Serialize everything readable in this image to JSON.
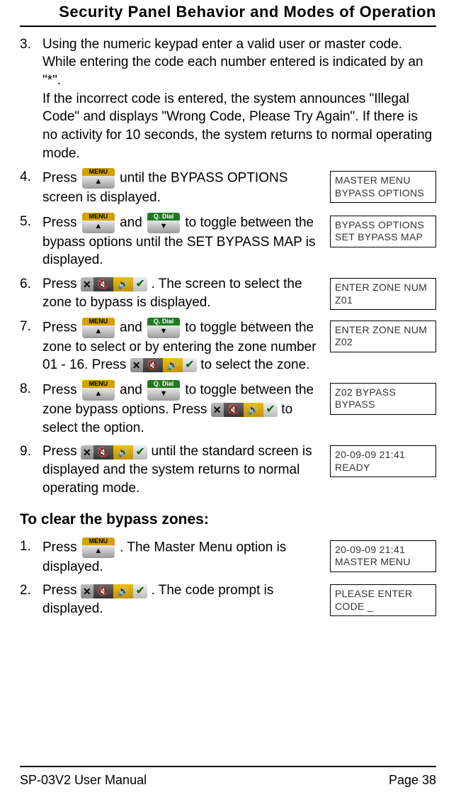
{
  "header": {
    "title": "Security Panel Behavior and Modes of Operation"
  },
  "buttons": {
    "menu_label": "MENU",
    "menu_arrow": "▲",
    "qdial_label": "Q. Dial",
    "qdial_arrow": "▼",
    "x": "✕",
    "spk_mute": "🔇",
    "spk_on": "🔊",
    "check": "✔"
  },
  "steps_a": [
    {
      "n": "3.",
      "text": "Using the numeric keypad enter a valid user or master code. While entering the code each number entered is indicated by an \"*\".\nIf the incorrect code is entered, the system announces \"Illegal Code\" and displays \"Wrong Code, Please Try Again\". If there is no activity for 10 seconds, the system returns to normal operating mode.",
      "lcd": null
    },
    {
      "n": "4.",
      "pre": "Press ",
      "after": " until the BYPASS OPTIONS screen is displayed.",
      "lcd": "MASTER MENU\nBYPASS OPTIONS"
    },
    {
      "n": "5.",
      "pre": "Press ",
      "mid": " and ",
      "after": " to toggle between the bypass options until the SET BYPASS MAP is displayed.",
      "lcd": "BYPASS OPTIONS\nSET BYPASS MAP"
    },
    {
      "n": "6.",
      "pre": "Press ",
      "after": ". The screen to select the zone to bypass is displayed.",
      "lcd": "ENTER ZONE NUM\nZ01"
    },
    {
      "n": "7.",
      "pre": "Press ",
      "mid": " and ",
      "after1": " to toggle between the zone to select or by entering the zone number 01 - 16. Press ",
      "after2": " to select the zone.",
      "lcd": "ENTER ZONE NUM\nZ02"
    },
    {
      "n": "8.",
      "pre": "Press ",
      "mid": " and ",
      "after1": " to toggle between the zone bypass options. Press ",
      "after2": " to select the option.",
      "lcd": "Z02 BYPASS\n BYPASS"
    },
    {
      "n": "9.",
      "pre": "Press ",
      "after": " until the standard screen is displayed and the system returns to normal operating mode.",
      "lcd": "20-09-09  21:41\nREADY"
    }
  ],
  "section_title": "To clear the bypass zones:",
  "steps_b": [
    {
      "n": "1.",
      "pre": "Press ",
      "after": ". The Master Menu option is displayed.",
      "lcd": "20-09-09 21:41\nMASTER MENU"
    },
    {
      "n": "2.",
      "pre": "Press ",
      "after": ". The code prompt is displayed.",
      "lcd": "PLEASE ENTER\nCODE              _"
    }
  ],
  "footer": {
    "left": "SP-03V2 User Manual",
    "right": "Page 38"
  }
}
